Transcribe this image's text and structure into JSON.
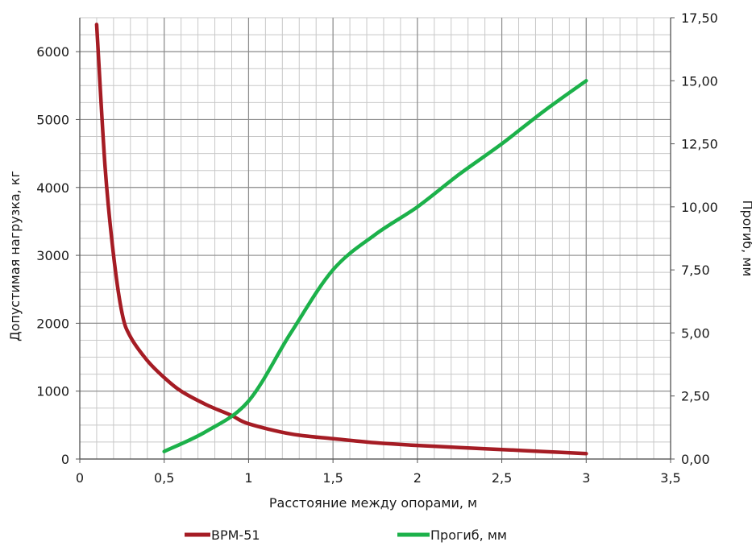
{
  "chart_data": {
    "type": "line",
    "xlabel": "Расстояние между опорами, м",
    "ylabel": "Допустимая нагрузка, кг",
    "y2label": "Прогиб, мм",
    "xlim": [
      0,
      3.5
    ],
    "ylim": [
      0,
      6500
    ],
    "y2lim": [
      0,
      17.5
    ],
    "x_ticks": [
      0,
      0.5,
      1,
      1.5,
      2,
      2.5,
      3,
      3.5
    ],
    "x_tick_labels": [
      "0",
      "0,5",
      "1",
      "1,5",
      "2",
      "2,5",
      "3",
      "3,5"
    ],
    "y_ticks": [
      0,
      1000,
      2000,
      3000,
      4000,
      5000,
      6000
    ],
    "y_tick_labels": [
      "0",
      "1000",
      "2000",
      "3000",
      "4000",
      "5000",
      "6000"
    ],
    "y2_ticks": [
      0,
      2.5,
      5,
      7.5,
      10,
      12.5,
      15,
      17.5
    ],
    "y2_tick_labels": [
      "0,00",
      "2,50",
      "5,00",
      "7,50",
      "10,00",
      "12,50",
      "15,00",
      "17,50"
    ],
    "grid": true,
    "legend_position": "bottom",
    "series": [
      {
        "name": "ВРМ-51",
        "axis": "left",
        "color": "#a51c24",
        "points": [
          [
            0.1,
            6400
          ],
          [
            0.15,
            4300
          ],
          [
            0.2,
            3000
          ],
          [
            0.25,
            2150
          ],
          [
            0.3,
            1800
          ],
          [
            0.4,
            1450
          ],
          [
            0.5,
            1200
          ],
          [
            0.6,
            1000
          ],
          [
            0.75,
            800
          ],
          [
            0.9,
            640
          ],
          [
            1.0,
            520
          ],
          [
            1.25,
            370
          ],
          [
            1.5,
            300
          ],
          [
            1.75,
            240
          ],
          [
            2.0,
            200
          ],
          [
            2.25,
            170
          ],
          [
            2.5,
            140
          ],
          [
            2.75,
            110
          ],
          [
            3.0,
            80
          ]
        ]
      },
      {
        "name": "Прогиб, мм",
        "axis": "right",
        "color": "#1cb14a",
        "points": [
          [
            0.5,
            0.3
          ],
          [
            0.75,
            1.1
          ],
          [
            1.0,
            2.3
          ],
          [
            1.25,
            5.0
          ],
          [
            1.5,
            7.5
          ],
          [
            1.75,
            8.9
          ],
          [
            2.0,
            10.0
          ],
          [
            2.25,
            11.3
          ],
          [
            2.5,
            12.5
          ],
          [
            2.75,
            13.8
          ],
          [
            3.0,
            15.0
          ]
        ]
      }
    ]
  }
}
